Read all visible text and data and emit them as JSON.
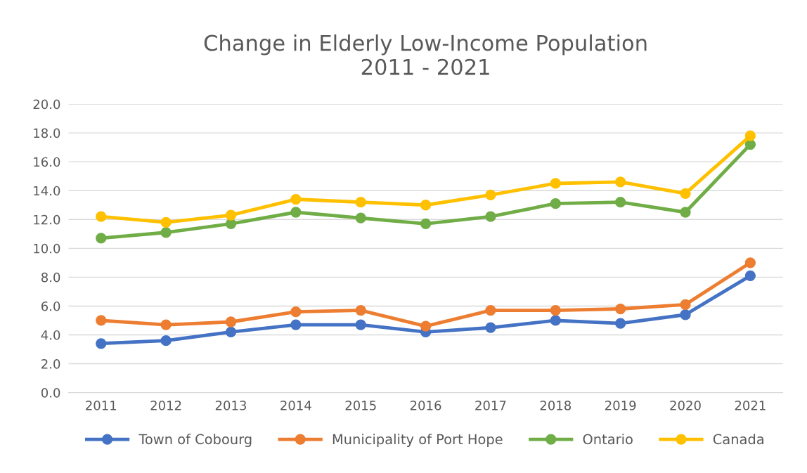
{
  "chart_data": {
    "type": "line",
    "title": "Change in Elderly Low-Income Population\n2011 - 2021",
    "categories": [
      "2011",
      "2012",
      "2013",
      "2014",
      "2015",
      "2016",
      "2017",
      "2018",
      "2019",
      "2020",
      "2021"
    ],
    "series": [
      {
        "name": "Town of Cobourg",
        "color": "#4472c4",
        "values": [
          3.4,
          3.6,
          4.2,
          4.7,
          4.7,
          4.2,
          4.5,
          5.0,
          4.8,
          5.4,
          8.1
        ]
      },
      {
        "name": "Municipality of Port Hope",
        "color": "#ed7d31",
        "values": [
          5.0,
          4.7,
          4.9,
          5.6,
          5.7,
          4.6,
          5.7,
          5.7,
          5.8,
          6.1,
          9.0
        ]
      },
      {
        "name": "Ontario",
        "color": "#70ad47",
        "values": [
          10.7,
          11.1,
          11.7,
          12.5,
          12.1,
          11.7,
          12.2,
          13.1,
          13.2,
          12.5,
          17.2
        ]
      },
      {
        "name": "Canada",
        "color": "#ffc000",
        "values": [
          12.2,
          11.8,
          12.3,
          13.4,
          13.2,
          13.0,
          13.7,
          14.5,
          14.6,
          13.8,
          17.8
        ]
      }
    ],
    "ylim": [
      0,
      20
    ],
    "yticks": [
      {
        "value": 0,
        "label": "0.0"
      },
      {
        "value": 2,
        "label": "2.0"
      },
      {
        "value": 4,
        "label": "4.0"
      },
      {
        "value": 6,
        "label": "6.0"
      },
      {
        "value": 8,
        "label": "8.0"
      },
      {
        "value": 10,
        "label": "10.0"
      },
      {
        "value": 12,
        "label": "12.0"
      },
      {
        "value": 14,
        "label": "14.0"
      },
      {
        "value": 16,
        "label": "16.0"
      },
      {
        "value": 18,
        "label": "18.0"
      },
      {
        "value": 20,
        "label": "20.0"
      }
    ],
    "grid": "y",
    "legend": "bottom",
    "marker": "circle",
    "line_style": "solid"
  }
}
